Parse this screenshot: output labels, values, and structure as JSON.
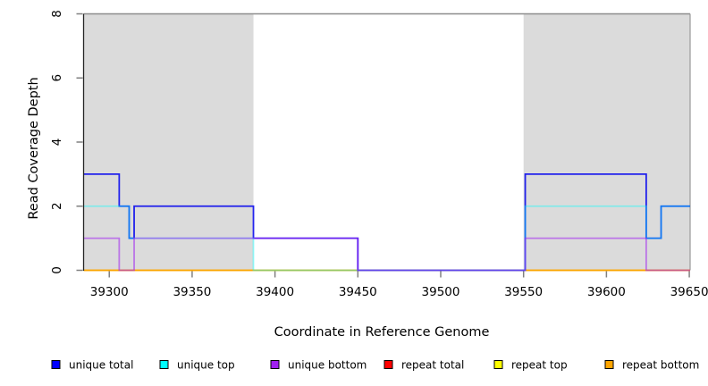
{
  "chart_data": {
    "type": "line",
    "title": "",
    "xlabel": "Coordinate in Reference Genome",
    "ylabel": "Read Coverage Depth",
    "xlim": [
      39284.5,
      39650.5
    ],
    "ylim": [
      0,
      8
    ],
    "xticks": [
      39300,
      39350,
      39400,
      39450,
      39500,
      39550,
      39600,
      39650
    ],
    "yticks": [
      0,
      2,
      4,
      6,
      8
    ],
    "grid": false,
    "legend_position": "bottom",
    "background": "#FFFFFF",
    "region_fill": "#DBDBDB",
    "top_border_color": "#8C8C8C",
    "right_border_color": "#9A9A9A",
    "axis_color": "#262626",
    "tick_color": "#808080",
    "repeat_regions": [
      {
        "start": 39284.5,
        "end": 39387
      },
      {
        "start": 39550,
        "end": 39650.5
      }
    ],
    "series": [
      {
        "name": "repeat total",
        "color": "#FF0000",
        "alpha": 0.55,
        "steps": [
          [
            39284.5,
            0
          ],
          [
            39650.5,
            0
          ]
        ]
      },
      {
        "name": "repeat top",
        "color": "#FFFF00",
        "alpha": 0.6,
        "steps": [
          [
            39284.5,
            0
          ],
          [
            39650.5,
            0
          ]
        ]
      },
      {
        "name": "repeat bottom",
        "color": "#FFA500",
        "alpha": 0.85,
        "steps": [
          [
            39284.5,
            0
          ],
          [
            39650.5,
            0
          ]
        ]
      },
      {
        "name": "unique total",
        "color": "#0000EE",
        "alpha": 0.85,
        "steps": [
          [
            39284.5,
            3
          ],
          [
            39306,
            2
          ],
          [
            39312,
            1
          ],
          [
            39315,
            2
          ],
          [
            39387,
            1
          ],
          [
            39450,
            0
          ],
          [
            39551,
            3
          ],
          [
            39624,
            1
          ],
          [
            39633,
            2
          ],
          [
            39650.5,
            2
          ]
        ]
      },
      {
        "name": "unique top",
        "color": "#00FFFF",
        "alpha": 0.4,
        "steps": [
          [
            39284.5,
            2
          ],
          [
            39312,
            1
          ],
          [
            39387,
            0
          ],
          [
            39551,
            2
          ],
          [
            39624,
            1
          ],
          [
            39633,
            2
          ],
          [
            39650.5,
            2
          ]
        ]
      },
      {
        "name": "unique bottom",
        "color": "#A020F0",
        "alpha": 0.55,
        "steps": [
          [
            39284.5,
            1
          ],
          [
            39306,
            0
          ],
          [
            39315,
            1
          ],
          [
            39450,
            0
          ],
          [
            39551,
            1
          ],
          [
            39624,
            0
          ],
          [
            39650.5,
            0
          ]
        ]
      }
    ],
    "legend": [
      {
        "label": "unique total",
        "color": "#0000FF"
      },
      {
        "label": "unique top",
        "color": "#00FFFF"
      },
      {
        "label": "unique bottom",
        "color": "#A020F0"
      },
      {
        "label": "repeat total",
        "color": "#FF0000"
      },
      {
        "label": "repeat top",
        "color": "#FFFF00"
      },
      {
        "label": "repeat bottom",
        "color": "#FFA500"
      }
    ]
  }
}
